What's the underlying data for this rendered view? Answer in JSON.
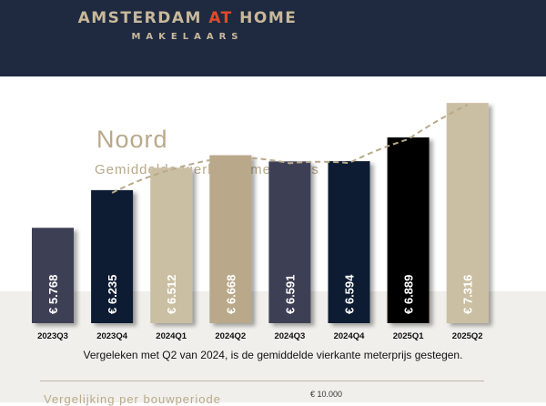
{
  "brand": {
    "name_part1": "AMSTERDAM ",
    "name_accent": "AT",
    "name_part2": " HOME",
    "subline": "MAKELAARS"
  },
  "title": "Noord",
  "subtitle": "Gemiddelde vierkante meterprijs",
  "caption": "Vergeleken met Q2 van 2024, is de gemiddelde vierkante meterprijs gestegen.",
  "section_title": "Vergelijking per bouwperiode",
  "next_chart_tick": "€ 10.000",
  "chart_data": {
    "type": "bar",
    "categories": [
      "2023Q3",
      "2023Q4",
      "2024Q1",
      "2024Q2",
      "2024Q3",
      "2024Q4",
      "2025Q1",
      "2025Q2"
    ],
    "values": [
      5768,
      6235,
      6512,
      6668,
      6591,
      6594,
      6889,
      7316
    ],
    "value_labels": [
      "€ 5.768",
      "€ 6.235",
      "€ 6.512",
      "€ 6.668",
      "€ 6.591",
      "€ 6.594",
      "€ 6.889",
      "€ 7.316"
    ],
    "colors": [
      "#3d3f55",
      "#0f1c33",
      "#cbbfa3",
      "#b9a98a",
      "#3d3f55",
      "#0f1c33",
      "#050505",
      "#cbbfa3"
    ],
    "trendline": {
      "style": "dashed",
      "color": "#b9a98a"
    },
    "title": "Noord",
    "subtitle": "Gemiddelde vierkante meterprijs",
    "xlabel": "",
    "ylabel": ""
  }
}
